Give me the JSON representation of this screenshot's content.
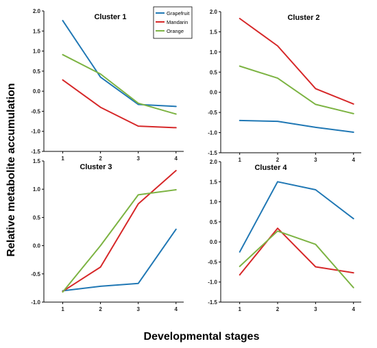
{
  "figure": {
    "ylabel": "Relative metabolite accumulation",
    "xlabel": "Developmental stages"
  },
  "legend": [
    {
      "name": "Grapefruit",
      "color": "#1f77b4"
    },
    {
      "name": "Mandarin",
      "color": "#d62728"
    },
    {
      "name": "Orange",
      "color": "#7cb342"
    }
  ],
  "chart_data": [
    {
      "type": "line",
      "title": "Cluster 1",
      "x": [
        1,
        2,
        3,
        4
      ],
      "xticks": [
        "1",
        "2",
        "3",
        "4"
      ],
      "ylim": [
        -1.5,
        2.0
      ],
      "yticks": [
        "2.0",
        "1.5",
        "1.0",
        "0.5",
        "0.0",
        "-0.5",
        "-1.0",
        "-1.5"
      ],
      "legend_position": "top-right",
      "series": [
        {
          "name": "Grapefruit",
          "color": "#1f77b4",
          "values": [
            1.76,
            0.35,
            -0.33,
            -0.38
          ]
        },
        {
          "name": "Mandarin",
          "color": "#d62728",
          "values": [
            0.28,
            -0.4,
            -0.87,
            -0.91
          ]
        },
        {
          "name": "Orange",
          "color": "#7cb342",
          "values": [
            0.91,
            0.43,
            -0.3,
            -0.57
          ]
        }
      ]
    },
    {
      "type": "line",
      "title": "Cluster 2",
      "x": [
        1,
        2,
        3,
        4
      ],
      "xticks": [
        "1",
        "2",
        "3",
        "4"
      ],
      "ylim": [
        -1.5,
        2.0
      ],
      "yticks": [
        "2.0",
        "1.5",
        "1.0",
        "0.5",
        "0.0",
        "-0.5",
        "-1.0",
        "-1.5"
      ],
      "series": [
        {
          "name": "Grapefruit",
          "color": "#1f77b4",
          "values": [
            -0.7,
            -0.72,
            -0.87,
            -0.99
          ]
        },
        {
          "name": "Mandarin",
          "color": "#d62728",
          "values": [
            1.83,
            1.15,
            0.09,
            -0.29
          ]
        },
        {
          "name": "Orange",
          "color": "#7cb342",
          "values": [
            0.65,
            0.35,
            -0.3,
            -0.53
          ]
        }
      ]
    },
    {
      "type": "line",
      "title": "Cluster 3",
      "x": [
        1,
        2,
        3,
        4
      ],
      "xticks": [
        "1",
        "2",
        "3",
        "4"
      ],
      "ylim": [
        -1.0,
        1.5
      ],
      "yticks": [
        "1.5",
        "1.0",
        "0.5",
        "0.0",
        "-0.5",
        "-1.0"
      ],
      "series": [
        {
          "name": "Grapefruit",
          "color": "#1f77b4",
          "values": [
            -0.8,
            -0.72,
            -0.67,
            0.29
          ]
        },
        {
          "name": "Mandarin",
          "color": "#d62728",
          "values": [
            -0.81,
            -0.38,
            0.74,
            1.33
          ]
        },
        {
          "name": "Orange",
          "color": "#7cb342",
          "values": [
            -0.82,
            0.0,
            0.9,
            0.99
          ]
        }
      ]
    },
    {
      "type": "line",
      "title": "Cluster 4",
      "x": [
        1,
        2,
        3,
        4
      ],
      "xticks": [
        "1",
        "2",
        "3",
        "4"
      ],
      "ylim": [
        -1.5,
        2.0
      ],
      "yticks": [
        "2.0",
        "1.5",
        "1.0",
        "0.5",
        "0.0",
        "-0.5",
        "-1.0",
        "-1.5"
      ],
      "series": [
        {
          "name": "Grapefruit",
          "color": "#1f77b4",
          "values": [
            -0.25,
            1.5,
            1.3,
            0.58
          ]
        },
        {
          "name": "Mandarin",
          "color": "#d62728",
          "values": [
            -0.82,
            0.34,
            -0.62,
            -0.77
          ]
        },
        {
          "name": "Orange",
          "color": "#7cb342",
          "values": [
            -0.61,
            0.27,
            -0.06,
            -1.14
          ]
        }
      ]
    }
  ]
}
